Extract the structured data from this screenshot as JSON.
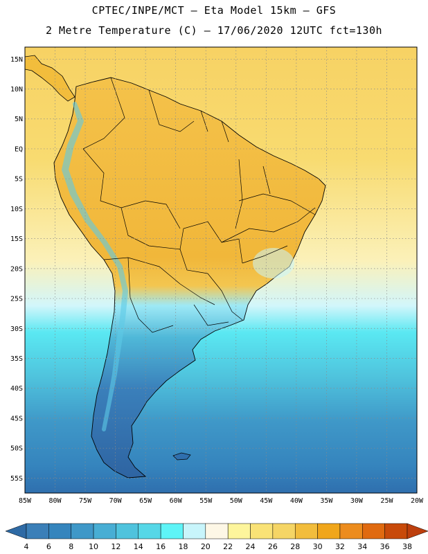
{
  "header": {
    "line1": "CPTEC/INPE/MCT –  Eta Model 15km – GFS",
    "line2": "2 Metre Temperature (C) – 17/06/2020 12UTC fct=130h"
  },
  "map": {
    "lon_range": [
      -85,
      -20
    ],
    "lat_range": [
      -57.5,
      17
    ],
    "lat_ticks": [
      {
        "lat": 15,
        "label": "15N"
      },
      {
        "lat": 10,
        "label": "10N"
      },
      {
        "lat": 5,
        "label": "5N"
      },
      {
        "lat": 0,
        "label": "EQ"
      },
      {
        "lat": -5,
        "label": "5S"
      },
      {
        "lat": -10,
        "label": "10S"
      },
      {
        "lat": -15,
        "label": "15S"
      },
      {
        "lat": -20,
        "label": "20S"
      },
      {
        "lat": -25,
        "label": "25S"
      },
      {
        "lat": -30,
        "label": "30S"
      },
      {
        "lat": -35,
        "label": "35S"
      },
      {
        "lat": -40,
        "label": "40S"
      },
      {
        "lat": -45,
        "label": "45S"
      },
      {
        "lat": -50,
        "label": "50S"
      },
      {
        "lat": -55,
        "label": "55S"
      }
    ],
    "lon_ticks": [
      {
        "lon": -85,
        "label": "85W"
      },
      {
        "lon": -80,
        "label": "80W"
      },
      {
        "lon": -75,
        "label": "75W"
      },
      {
        "lon": -70,
        "label": "70W"
      },
      {
        "lon": -65,
        "label": "65W"
      },
      {
        "lon": -60,
        "label": "60W"
      },
      {
        "lon": -55,
        "label": "55W"
      },
      {
        "lon": -50,
        "label": "50W"
      },
      {
        "lon": -45,
        "label": "45W"
      },
      {
        "lon": -40,
        "label": "40W"
      },
      {
        "lon": -35,
        "label": "35W"
      },
      {
        "lon": -30,
        "label": "30W"
      },
      {
        "lon": -25,
        "label": "25W"
      },
      {
        "lon": -20,
        "label": "20W"
      }
    ]
  },
  "colorbar": {
    "values": [
      4,
      6,
      8,
      10,
      12,
      14,
      16,
      18,
      20,
      22,
      24,
      26,
      28,
      30,
      32,
      34,
      36,
      38
    ],
    "colors": [
      "#3b7fb8",
      "#3585bd",
      "#3f98c8",
      "#48aed4",
      "#4fc3dd",
      "#56d7e7",
      "#5ef4f7",
      "#c8f5fb",
      "#fdf7e6",
      "#fdf59c",
      "#f9e276",
      "#f5d565",
      "#f2bd3c",
      "#f0a61b",
      "#ec8c1e",
      "#e06a10",
      "#c84a0a"
    ],
    "low_color": "#2e6aa5",
    "high_color": "#bd3f0d"
  }
}
